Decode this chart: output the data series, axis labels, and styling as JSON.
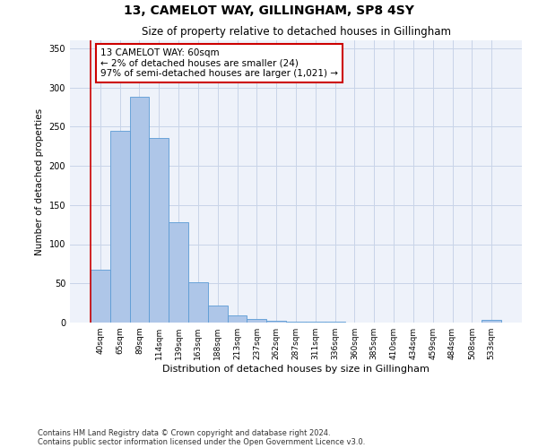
{
  "title": "13, CAMELOT WAY, GILLINGHAM, SP8 4SY",
  "subtitle": "Size of property relative to detached houses in Gillingham",
  "xlabel": "Distribution of detached houses by size in Gillingham",
  "ylabel": "Number of detached properties",
  "categories": [
    "40sqm",
    "65sqm",
    "89sqm",
    "114sqm",
    "139sqm",
    "163sqm",
    "188sqm",
    "213sqm",
    "237sqm",
    "262sqm",
    "287sqm",
    "311sqm",
    "336sqm",
    "360sqm",
    "385sqm",
    "410sqm",
    "434sqm",
    "459sqm",
    "484sqm",
    "508sqm",
    "533sqm"
  ],
  "values": [
    67,
    245,
    288,
    235,
    128,
    52,
    22,
    9,
    5,
    2,
    1,
    1,
    1,
    0,
    0,
    0,
    0,
    0,
    0,
    0,
    3
  ],
  "bar_color": "#aec6e8",
  "bar_edge_color": "#5b9bd5",
  "grid_color": "#c8d4e8",
  "background_color": "#ffffff",
  "plot_background": "#eef2fa",
  "annotation_box_color": "#ffffff",
  "annotation_box_edge": "#cc0000",
  "marker_line_color": "#cc0000",
  "annotation_title": "13 CAMELOT WAY: 60sqm",
  "annotation_line1": "← 2% of detached houses are smaller (24)",
  "annotation_line2": "97% of semi-detached houses are larger (1,021) →",
  "ylim": [
    0,
    360
  ],
  "yticks": [
    0,
    50,
    100,
    150,
    200,
    250,
    300,
    350
  ],
  "footer1": "Contains HM Land Registry data © Crown copyright and database right 2024.",
  "footer2": "Contains public sector information licensed under the Open Government Licence v3.0."
}
